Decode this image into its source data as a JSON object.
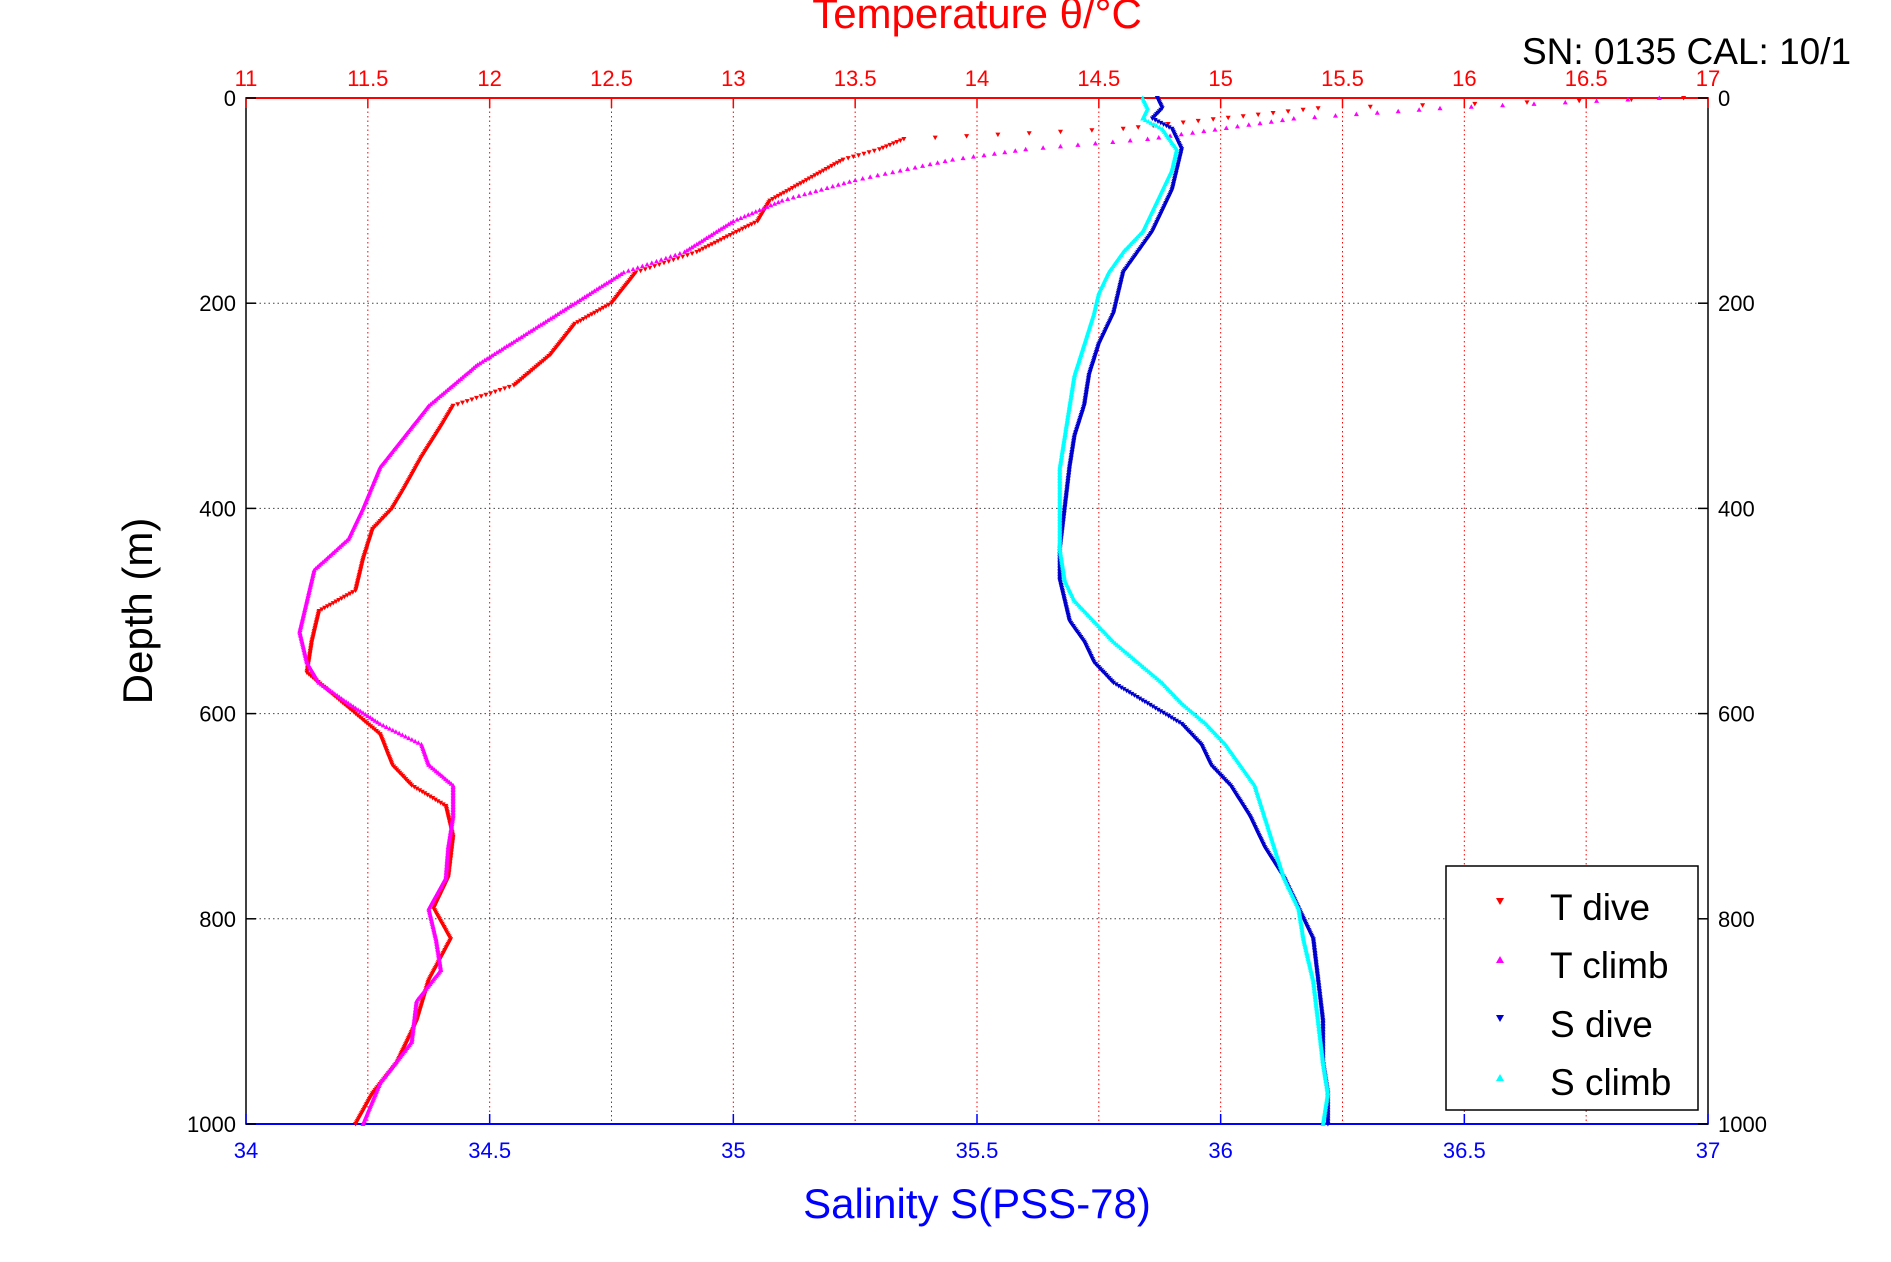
{
  "chart_data": {
    "type": "scatter",
    "title": "Temperature θ/°C",
    "header_text": "SN: 0135  CAL: 10/1",
    "xlabel_top": "Temperature θ/°C",
    "xlabel_bottom": "Salinity S(PSS-78)",
    "ylabel": "Depth (m)",
    "temperature_axis": {
      "range": [
        11,
        17
      ],
      "ticks": [
        "11",
        "11.5",
        "12",
        "12.5",
        "13",
        "13.5",
        "14",
        "14.5",
        "15",
        "15.5",
        "16",
        "16.5",
        "17"
      ],
      "color": "#ff0000"
    },
    "salinity_axis": {
      "range": [
        34,
        37
      ],
      "ticks": [
        "34",
        "34.5",
        "35",
        "35.5",
        "36",
        "36.5",
        "37"
      ],
      "color": "#0000ff"
    },
    "depth_axis": {
      "range": [
        0,
        1000
      ],
      "reversed": true,
      "ticks": [
        "0",
        "200",
        "400",
        "600",
        "800",
        "1000"
      ]
    },
    "grid": true,
    "legend_position": "bottom-right",
    "legend": [
      "T dive",
      "T climb",
      "S dive",
      "S climb"
    ],
    "series": [
      {
        "name": "T dive",
        "axis": "temperature",
        "marker": "down-triangle",
        "color": "#ff0000",
        "depth": [
          0,
          10,
          30,
          40,
          50,
          60,
          80,
          100,
          120,
          150,
          170,
          200,
          220,
          250,
          280,
          300,
          320,
          350,
          380,
          400,
          420,
          450,
          480,
          500,
          530,
          560,
          580,
          600,
          620,
          650,
          670,
          690,
          720,
          760,
          790,
          820,
          860,
          900,
          940,
          970,
          1000
        ],
        "values": [
          16.9,
          15.4,
          14.6,
          13.7,
          13.6,
          13.45,
          13.3,
          13.15,
          13.1,
          12.85,
          12.6,
          12.5,
          12.35,
          12.25,
          12.1,
          11.85,
          11.8,
          11.72,
          11.65,
          11.6,
          11.52,
          11.48,
          11.45,
          11.3,
          11.27,
          11.25,
          11.35,
          11.45,
          11.55,
          11.6,
          11.68,
          11.82,
          11.85,
          11.83,
          11.77,
          11.84,
          11.75,
          11.7,
          11.62,
          11.52,
          11.45
        ]
      },
      {
        "name": "T climb",
        "axis": "temperature",
        "marker": "up-triangle",
        "color": "#ff00ff",
        "depth": [
          0,
          10,
          20,
          40,
          50,
          60,
          80,
          100,
          120,
          150,
          170,
          200,
          230,
          260,
          280,
          300,
          330,
          360,
          400,
          430,
          460,
          490,
          520,
          550,
          570,
          590,
          610,
          630,
          650,
          670,
          700,
          730,
          760,
          790,
          820,
          850,
          880,
          920,
          960,
          1000
        ],
        "values": [
          16.8,
          15.9,
          15.3,
          14.7,
          14.2,
          13.9,
          13.5,
          13.2,
          13.0,
          12.8,
          12.55,
          12.35,
          12.15,
          11.95,
          11.85,
          11.75,
          11.65,
          11.55,
          11.48,
          11.42,
          11.28,
          11.25,
          11.22,
          11.25,
          11.3,
          11.42,
          11.55,
          11.72,
          11.75,
          11.85,
          11.85,
          11.83,
          11.82,
          11.75,
          11.78,
          11.8,
          11.7,
          11.68,
          11.55,
          11.48
        ]
      },
      {
        "name": "S dive",
        "axis": "salinity",
        "marker": "down-triangle",
        "color": "#0000cc",
        "depth": [
          0,
          10,
          20,
          30,
          50,
          70,
          90,
          110,
          130,
          150,
          170,
          190,
          210,
          240,
          270,
          300,
          330,
          360,
          400,
          440,
          470,
          490,
          510,
          530,
          550,
          570,
          590,
          610,
          630,
          650,
          670,
          700,
          730,
          760,
          790,
          820,
          860,
          900,
          940,
          970,
          1000
        ],
        "values": [
          35.87,
          35.88,
          35.86,
          35.9,
          35.92,
          35.91,
          35.9,
          35.88,
          35.86,
          35.83,
          35.8,
          35.79,
          35.78,
          35.75,
          35.73,
          35.72,
          35.7,
          35.69,
          35.68,
          35.67,
          35.67,
          35.68,
          35.69,
          35.72,
          35.74,
          35.78,
          35.85,
          35.92,
          35.96,
          35.98,
          36.02,
          36.06,
          36.09,
          36.13,
          36.16,
          36.19,
          36.2,
          36.21,
          36.21,
          36.22,
          36.22
        ]
      },
      {
        "name": "S climb",
        "axis": "salinity",
        "marker": "up-triangle",
        "color": "#00ffff",
        "depth": [
          0,
          10,
          20,
          30,
          50,
          70,
          90,
          110,
          130,
          150,
          170,
          190,
          210,
          240,
          270,
          300,
          330,
          360,
          400,
          440,
          470,
          490,
          510,
          530,
          550,
          570,
          590,
          610,
          630,
          650,
          670,
          700,
          730,
          760,
          790,
          820,
          860,
          900,
          940,
          970,
          1000
        ],
        "values": [
          35.84,
          35.85,
          35.84,
          35.88,
          35.91,
          35.9,
          35.88,
          35.86,
          35.84,
          35.8,
          35.77,
          35.75,
          35.74,
          35.72,
          35.7,
          35.69,
          35.68,
          35.67,
          35.67,
          35.67,
          35.68,
          35.7,
          35.74,
          35.78,
          35.83,
          35.88,
          35.92,
          35.97,
          36.01,
          36.04,
          36.07,
          36.09,
          36.11,
          36.13,
          36.16,
          36.17,
          36.19,
          36.2,
          36.21,
          36.22,
          36.21
        ]
      }
    ]
  }
}
